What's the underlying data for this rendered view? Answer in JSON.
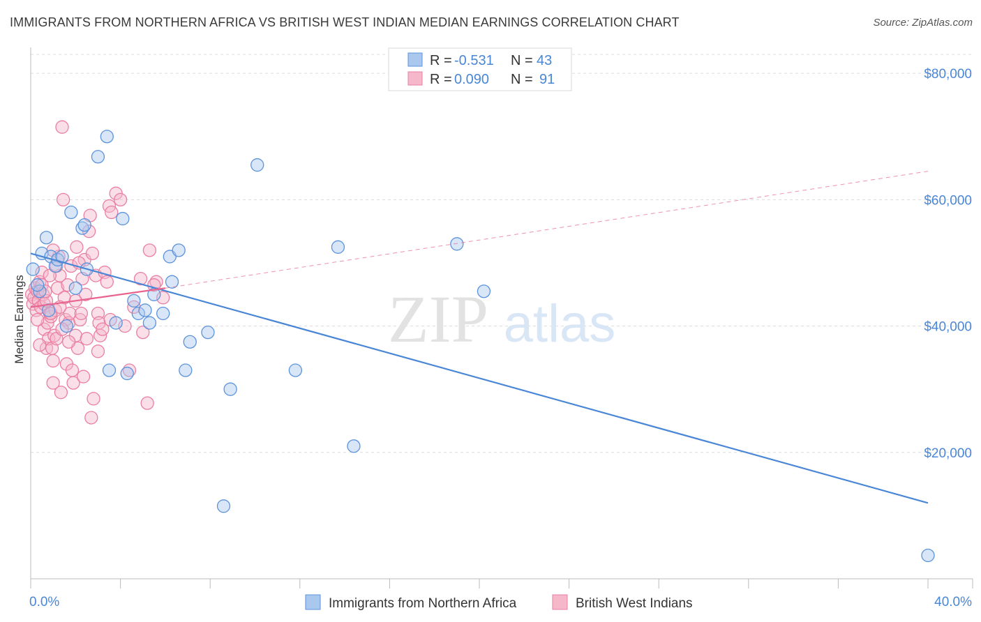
{
  "title": "IMMIGRANTS FROM NORTHERN AFRICA VS BRITISH WEST INDIAN MEDIAN EARNINGS CORRELATION CHART",
  "source": "Source: ZipAtlas.com",
  "watermark": {
    "zip": "ZIP",
    "atlas": "atlas"
  },
  "colors": {
    "blue": "#4a86d6",
    "blue_fill": "#aac8ee",
    "blue_stroke": "#5b93dc",
    "pink": "#e8638e",
    "pink_fill": "#f5b8cb",
    "pink_stroke": "#ea7fa1",
    "grid": "#dcdcdc",
    "axis": "#bbbbbb"
  },
  "chart_data": {
    "type": "scatter",
    "ylabel": "Median Earnings",
    "xlim": [
      0,
      40
    ],
    "ylim": [
      0,
      83000
    ],
    "x_tick_labels": [
      {
        "value": 0,
        "label": "0.0%"
      },
      {
        "value": 40,
        "label": "40.0%"
      }
    ],
    "y_ticks": [
      {
        "value": 20000,
        "label": "$20,000"
      },
      {
        "value": 40000,
        "label": "$40,000"
      },
      {
        "value": 60000,
        "label": "$60,000"
      },
      {
        "value": 80000,
        "label": "$80,000"
      }
    ],
    "legend": [
      {
        "r_label": "R = ",
        "r": "-0.531",
        "n_label": "N = ",
        "n": "43",
        "color": "blue"
      },
      {
        "r_label": "R = ",
        "r": "0.090",
        "n_label": "N = ",
        "n": "91",
        "color": "pink"
      }
    ],
    "series": [
      {
        "name": "Immigrants from Northern Africa",
        "color": "blue",
        "trend": {
          "x0": 0,
          "y0": 51500,
          "x1": 40,
          "y1": 12000
        },
        "points": [
          [
            0.1,
            49000
          ],
          [
            0.4,
            45500
          ],
          [
            0.5,
            51500
          ],
          [
            0.7,
            54000
          ],
          [
            0.9,
            51000
          ],
          [
            1.1,
            49500
          ],
          [
            1.2,
            50500
          ],
          [
            1.4,
            51000
          ],
          [
            1.6,
            40000
          ],
          [
            1.8,
            58000
          ],
          [
            2.0,
            46000
          ],
          [
            2.3,
            55500
          ],
          [
            2.4,
            56000
          ],
          [
            2.5,
            49000
          ],
          [
            3.0,
            66800
          ],
          [
            3.4,
            70000
          ],
          [
            3.5,
            33000
          ],
          [
            3.8,
            40500
          ],
          [
            4.1,
            57000
          ],
          [
            4.3,
            32500
          ],
          [
            4.6,
            44000
          ],
          [
            4.8,
            42000
          ],
          [
            5.3,
            40500
          ],
          [
            5.1,
            42500
          ],
          [
            5.5,
            45000
          ],
          [
            5.9,
            42000
          ],
          [
            6.2,
            51000
          ],
          [
            6.3,
            47000
          ],
          [
            6.6,
            52000
          ],
          [
            6.9,
            33000
          ],
          [
            7.1,
            37500
          ],
          [
            7.9,
            39000
          ],
          [
            8.6,
            11500
          ],
          [
            8.9,
            30000
          ],
          [
            10.1,
            65500
          ],
          [
            11.8,
            33000
          ],
          [
            13.7,
            52500
          ],
          [
            14.4,
            21000
          ],
          [
            19.0,
            53000
          ],
          [
            20.2,
            45500
          ],
          [
            40.0,
            3700
          ],
          [
            0.3,
            46500
          ],
          [
            0.8,
            42500
          ]
        ]
      },
      {
        "name": "British West Indians",
        "color": "pink",
        "trend": {
          "x0": 0,
          "y0": 43000,
          "x1": 6.0,
          "y1": 46000
        },
        "dash": {
          "x0": 6.0,
          "y0": 46000,
          "x1": 40,
          "y1": 64500
        },
        "points": [
          [
            0.05,
            45000
          ],
          [
            0.1,
            43500
          ],
          [
            0.15,
            44500
          ],
          [
            0.2,
            46000
          ],
          [
            0.25,
            42500
          ],
          [
            0.3,
            45500
          ],
          [
            0.35,
            44000
          ],
          [
            0.4,
            47000
          ],
          [
            0.45,
            43000
          ],
          [
            0.5,
            46500
          ],
          [
            0.55,
            45000
          ],
          [
            0.6,
            43500
          ],
          [
            0.6,
            39500
          ],
          [
            0.7,
            36500
          ],
          [
            0.75,
            40500
          ],
          [
            0.8,
            38000
          ],
          [
            0.85,
            42000
          ],
          [
            0.9,
            41500
          ],
          [
            0.95,
            36500
          ],
          [
            1.0,
            34500
          ],
          [
            1.0,
            31000
          ],
          [
            1.05,
            38500
          ],
          [
            1.1,
            42500
          ],
          [
            1.2,
            46000
          ],
          [
            1.25,
            51000
          ],
          [
            1.3,
            48000
          ],
          [
            1.35,
            29500
          ],
          [
            1.4,
            71500
          ],
          [
            1.45,
            60000
          ],
          [
            1.5,
            44500
          ],
          [
            1.55,
            41000
          ],
          [
            1.6,
            34000
          ],
          [
            1.7,
            40500
          ],
          [
            1.75,
            42000
          ],
          [
            1.8,
            49500
          ],
          [
            1.85,
            33000
          ],
          [
            1.9,
            31000
          ],
          [
            2.0,
            38500
          ],
          [
            2.1,
            36500
          ],
          [
            2.2,
            41000
          ],
          [
            2.3,
            47500
          ],
          [
            2.35,
            32000
          ],
          [
            2.4,
            50500
          ],
          [
            2.5,
            38000
          ],
          [
            2.6,
            55000
          ],
          [
            2.65,
            57500
          ],
          [
            2.7,
            25500
          ],
          [
            2.75,
            51500
          ],
          [
            2.8,
            28500
          ],
          [
            2.9,
            48000
          ],
          [
            3.0,
            42000
          ],
          [
            3.05,
            40500
          ],
          [
            3.1,
            38500
          ],
          [
            3.2,
            39500
          ],
          [
            3.3,
            48500
          ],
          [
            3.4,
            47000
          ],
          [
            3.5,
            59000
          ],
          [
            3.6,
            58000
          ],
          [
            3.8,
            61000
          ],
          [
            4.0,
            60000
          ],
          [
            4.4,
            33000
          ],
          [
            4.6,
            43000
          ],
          [
            5.0,
            39000
          ],
          [
            5.2,
            27800
          ],
          [
            5.3,
            52000
          ],
          [
            5.6,
            47000
          ],
          [
            5.9,
            44500
          ],
          [
            0.4,
            37000
          ],
          [
            0.7,
            44000
          ],
          [
            0.9,
            42000
          ],
          [
            1.15,
            38000
          ],
          [
            1.3,
            43000
          ],
          [
            1.65,
            46500
          ],
          [
            2.05,
            52500
          ],
          [
            2.15,
            50000
          ],
          [
            2.45,
            45000
          ],
          [
            0.5,
            48500
          ],
          [
            0.65,
            45500
          ],
          [
            0.85,
            48000
          ],
          [
            1.0,
            52000
          ],
          [
            1.4,
            39500
          ],
          [
            1.7,
            37500
          ],
          [
            2.0,
            44000
          ],
          [
            2.25,
            42000
          ],
          [
            3.55,
            41000
          ],
          [
            4.2,
            40000
          ],
          [
            4.9,
            47500
          ],
          [
            5.5,
            46500
          ],
          [
            0.3,
            41000
          ],
          [
            1.15,
            49500
          ],
          [
            3.0,
            36000
          ]
        ]
      }
    ]
  }
}
